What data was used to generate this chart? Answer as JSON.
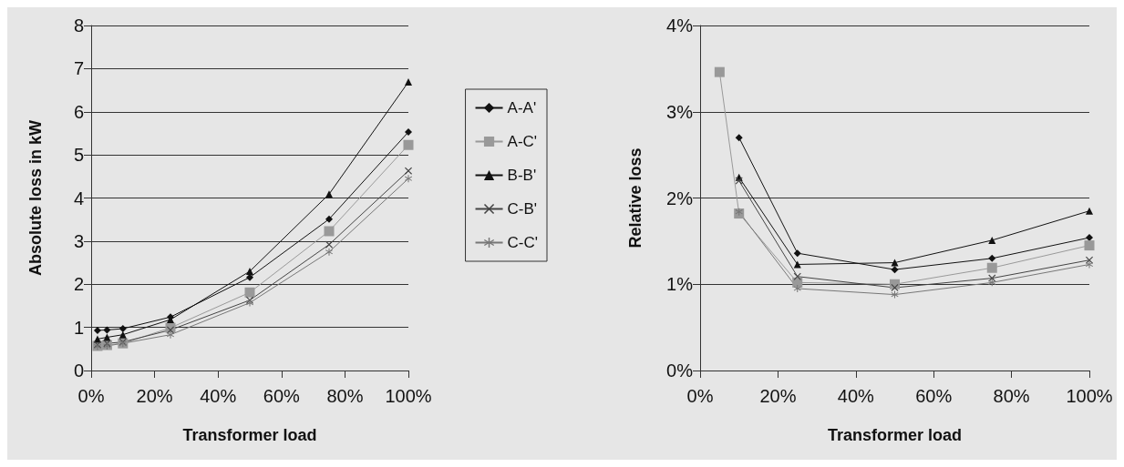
{
  "chart_data": [
    {
      "type": "line",
      "xlabel": "Transformer load",
      "ylabel": "Absolute loss in kW",
      "x": [
        2,
        5,
        10,
        25,
        50,
        75,
        100
      ],
      "series": [
        {
          "name": "A-A'",
          "color": "#111111",
          "marker": "diamond",
          "values": [
            0.93,
            0.94,
            0.97,
            1.24,
            2.16,
            3.51,
            5.53
          ]
        },
        {
          "name": "A-C'",
          "color": "#999999",
          "marker": "square",
          "values": [
            0.57,
            0.59,
            0.63,
            0.99,
            1.81,
            3.23,
            5.23
          ]
        },
        {
          "name": "B-B'",
          "color": "#111111",
          "marker": "triangle",
          "values": [
            0.73,
            0.77,
            0.83,
            1.18,
            2.3,
            4.09,
            6.69
          ]
        },
        {
          "name": "C-B'",
          "color": "#444444",
          "marker": "cross",
          "values": [
            0.6,
            0.63,
            0.66,
            0.94,
            1.63,
            2.92,
            4.63
          ]
        },
        {
          "name": "C-C'",
          "color": "#777777",
          "marker": "star",
          "values": [
            0.56,
            0.57,
            0.63,
            0.83,
            1.57,
            2.75,
            4.45
          ]
        }
      ],
      "xlim": [
        0,
        100
      ],
      "xticks": [
        {
          "value": 0,
          "label": "0%"
        },
        {
          "value": 20,
          "label": "20%"
        },
        {
          "value": 40,
          "label": "40%"
        },
        {
          "value": 60,
          "label": "60%"
        },
        {
          "value": 80,
          "label": "80%"
        },
        {
          "value": 100,
          "label": "100%"
        }
      ],
      "ylim": [
        0,
        8
      ],
      "yticks": [
        0,
        1,
        2,
        3,
        4,
        5,
        6,
        7,
        8
      ],
      "grid": "y",
      "legend": "right"
    },
    {
      "type": "line",
      "xlabel": "Transformer load",
      "ylabel": "Relative loss",
      "x": [
        5,
        10,
        25,
        50,
        75,
        100
      ],
      "series": [
        {
          "color": "#111111",
          "marker": "diamond",
          "values": [
            null,
            2.7,
            1.36,
            1.17,
            1.3,
            1.54
          ]
        },
        {
          "color": "#999999",
          "marker": "square",
          "values": [
            3.46,
            1.82,
            1.02,
            1.0,
            1.19,
            1.45
          ]
        },
        {
          "color": "#111111",
          "marker": "triangle",
          "values": [
            null,
            2.24,
            1.23,
            1.25,
            1.51,
            1.85
          ]
        },
        {
          "color": "#444444",
          "marker": "cross",
          "values": [
            null,
            2.2,
            1.09,
            0.96,
            1.07,
            1.28
          ]
        },
        {
          "color": "#777777",
          "marker": "star",
          "values": [
            null,
            1.84,
            0.95,
            0.88,
            1.02,
            1.23
          ]
        }
      ],
      "xlim": [
        0,
        100
      ],
      "xticks": [
        {
          "value": 0,
          "label": "0%"
        },
        {
          "value": 20,
          "label": "20%"
        },
        {
          "value": 40,
          "label": "40%"
        },
        {
          "value": 60,
          "label": "60%"
        },
        {
          "value": 80,
          "label": "80%"
        },
        {
          "value": 100,
          "label": "100%"
        }
      ],
      "ylim": [
        0,
        4
      ],
      "yticks": [
        {
          "value": 0,
          "label": "0%"
        },
        {
          "value": 1,
          "label": "1%"
        },
        {
          "value": 2,
          "label": "2%"
        },
        {
          "value": 3,
          "label": "3%"
        },
        {
          "value": 4,
          "label": "4%"
        }
      ],
      "grid": "y"
    }
  ]
}
